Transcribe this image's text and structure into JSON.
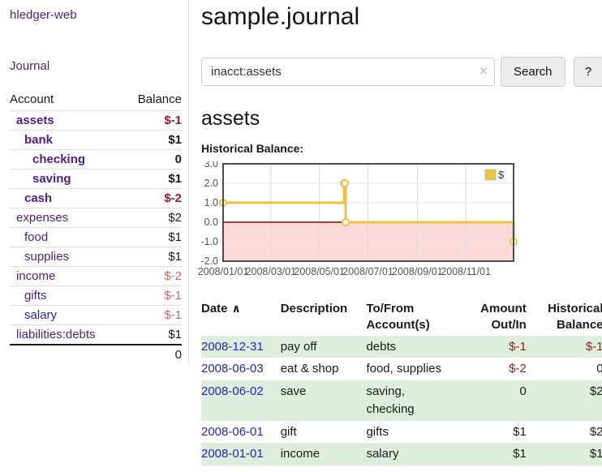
{
  "colors": {
    "link_purple": "#551a8b",
    "link_blue": "#2424cc",
    "neg_strong": "#941f1f",
    "neg_soft": "#c26b6b",
    "row_green": "#ddeedd",
    "chart_line": "#edc240",
    "chart_negative_fill": "#fcdada",
    "chart_zero_line": "#990000",
    "chart_border": "#4d4d4d"
  },
  "sidebar": {
    "app_title": "hledger-web",
    "journal_label": "Journal",
    "accounts_table": {
      "headers": {
        "account": "Account",
        "balance": "Balance"
      },
      "rows": [
        {
          "name": "assets",
          "balance": "$-1",
          "indent": 1,
          "bold": true,
          "neg": "strong"
        },
        {
          "name": "bank",
          "balance": "$1",
          "indent": 2,
          "bold": true,
          "neg": "none"
        },
        {
          "name": "checking",
          "balance": "0",
          "indent": 3,
          "bold": true,
          "neg": "none"
        },
        {
          "name": "saving",
          "balance": "$1",
          "indent": 3,
          "bold": true,
          "neg": "none"
        },
        {
          "name": "cash",
          "balance": "$-2",
          "indent": 2,
          "bold": true,
          "neg": "strong"
        },
        {
          "name": "expenses",
          "balance": "$2",
          "indent": 1,
          "bold": false,
          "neg": "none"
        },
        {
          "name": "food",
          "balance": "$1",
          "indent": 2,
          "bold": false,
          "neg": "none"
        },
        {
          "name": "supplies",
          "balance": "$1",
          "indent": 2,
          "bold": false,
          "neg": "none"
        },
        {
          "name": "income",
          "balance": "$-2",
          "indent": 1,
          "bold": false,
          "neg": "soft"
        },
        {
          "name": "gifts",
          "balance": "$-1",
          "indent": 2,
          "bold": false,
          "neg": "soft"
        },
        {
          "name": "salary",
          "balance": "$-1",
          "indent": 2,
          "bold": false,
          "neg": "soft",
          "link_style": "blue"
        },
        {
          "name": "liabilities:debts",
          "balance": "$1",
          "indent": 1,
          "bold": false,
          "neg": "none"
        }
      ],
      "total": "0"
    }
  },
  "main": {
    "title": "sample.journal",
    "search": {
      "value": "inacct:assets",
      "clear_icon": "×",
      "button_label": "Search",
      "help_label": "?"
    },
    "account_heading": "assets",
    "chart_label": "Historical Balance:"
  },
  "chart_data": {
    "type": "line",
    "step": true,
    "title": "Historical Balance:",
    "series": [
      {
        "name": "$",
        "points": [
          [
            "2008-01-01",
            1
          ],
          [
            "2008-06-01",
            2
          ],
          [
            "2008-06-02",
            2
          ],
          [
            "2008-06-03",
            0
          ],
          [
            "2008-12-31",
            -1
          ]
        ]
      }
    ],
    "xlim": [
      "2008-01-01",
      "2008-12-31"
    ],
    "ylim": [
      -2,
      3
    ],
    "x_ticks": [
      "2008/01/01",
      "2008/03/01",
      "2008/05/01",
      "2008/07/01",
      "2008/09/01",
      "2008/11/01"
    ],
    "y_ticks": [
      "3.0",
      "2.0",
      "1.0",
      "0.0",
      "-1.0",
      "-2.0"
    ],
    "grid": true,
    "legend": {
      "label": "$",
      "position": "top-right"
    },
    "negative_region_shaded": true
  },
  "register": {
    "sort_icon": "∧",
    "headers": [
      "Date",
      "Description",
      "To/From Account(s)",
      "Amount Out/In",
      "Historical Balance"
    ],
    "rows": [
      {
        "date": "2008-12-31",
        "description": "pay off",
        "accounts": "debts",
        "amount": "$-1",
        "balance": "$-1",
        "amount_neg": true,
        "balance_neg": true
      },
      {
        "date": "2008-06-03",
        "description": "eat & shop",
        "accounts": "food, supplies",
        "amount": "$-2",
        "balance": "0",
        "amount_neg": true,
        "balance_neg": false
      },
      {
        "date": "2008-06-02",
        "description": "save",
        "accounts": "saving, checking",
        "amount": "0",
        "balance": "$2",
        "amount_neg": false,
        "balance_neg": false
      },
      {
        "date": "2008-06-01",
        "description": "gift",
        "accounts": "gifts",
        "amount": "$1",
        "balance": "$2",
        "amount_neg": false,
        "balance_neg": false
      },
      {
        "date": "2008-01-01",
        "description": "income",
        "accounts": "salary",
        "amount": "$1",
        "balance": "$1",
        "amount_neg": false,
        "balance_neg": false
      }
    ]
  }
}
